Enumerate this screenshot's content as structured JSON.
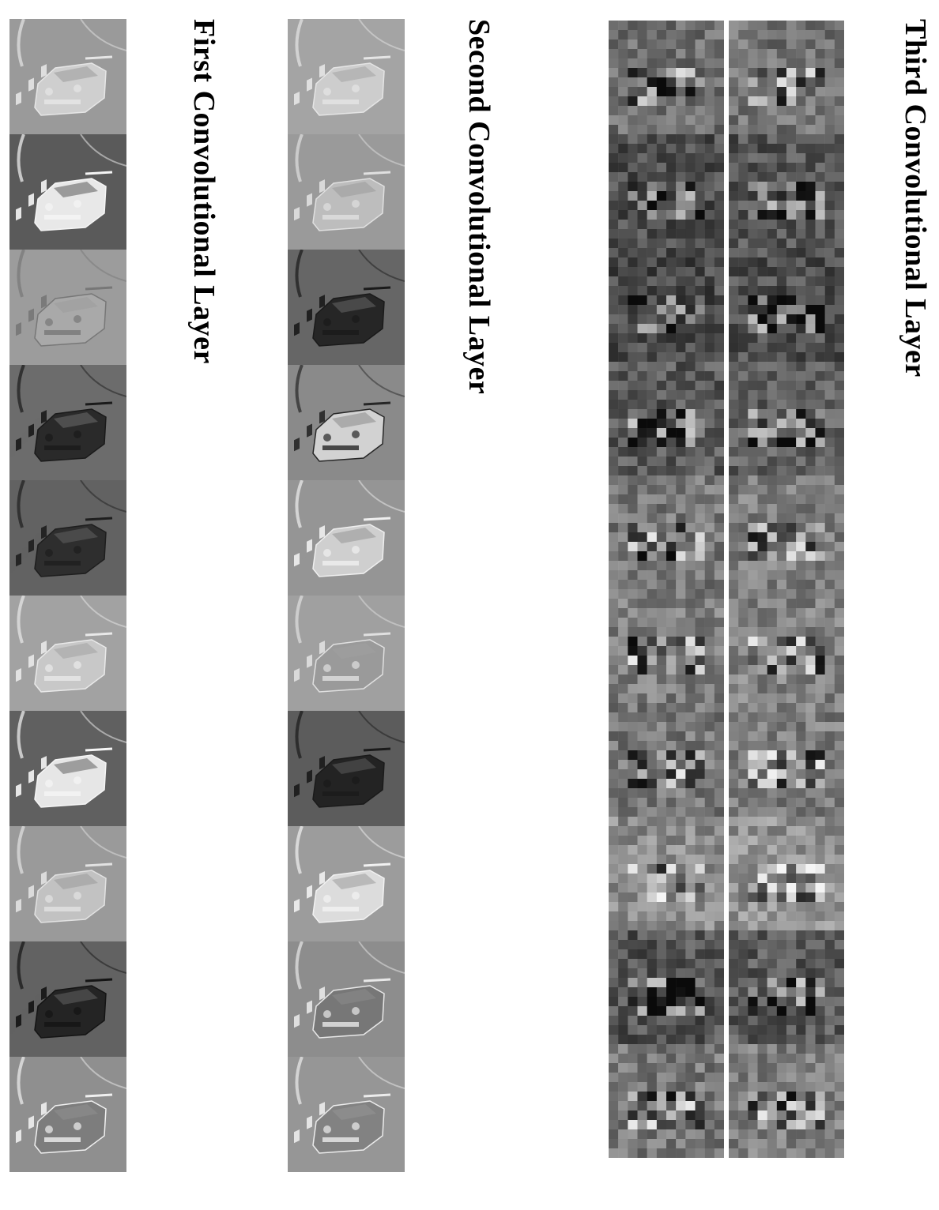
{
  "labels": {
    "first": "First Convolutional Layer",
    "second": "Second Convolutional Layer",
    "third": "Third Convolutional Layer"
  },
  "layers": {
    "first": {
      "name": "first-layer",
      "tiles": [
        {
          "bg": "#9a9a9a",
          "car": "#cfcfcf",
          "edge": "#e6e6e6"
        },
        {
          "bg": "#5a5a5a",
          "car": "#e8e8e8",
          "edge": "#f5f5f5"
        },
        {
          "bg": "#9c9c9c",
          "car": "#a9a9a9",
          "edge": "#777777"
        },
        {
          "bg": "#6c6c6c",
          "car": "#2a2a2a",
          "edge": "#1a1a1a"
        },
        {
          "bg": "#626262",
          "car": "#2e2e2e",
          "edge": "#1e1e1e"
        },
        {
          "bg": "#a2a2a2",
          "car": "#c8c8c8",
          "edge": "#e9e9e9"
        },
        {
          "bg": "#606060",
          "car": "#e6e6e6",
          "edge": "#f5f5f5"
        },
        {
          "bg": "#9a9a9a",
          "car": "#c2c2c2",
          "edge": "#e2e2e2"
        },
        {
          "bg": "#626262",
          "car": "#242424",
          "edge": "#141414"
        },
        {
          "bg": "#8f8f8f",
          "car": "#7d7d7d",
          "edge": "#f0f0f0"
        }
      ]
    },
    "second": {
      "name": "second-layer",
      "tiles": [
        {
          "bg": "#a4a4a4",
          "car": "#cdcdcd",
          "edge": "#e5e5e5"
        },
        {
          "bg": "#9a9a9a",
          "car": "#bdbdbd",
          "edge": "#e0e0e0"
        },
        {
          "bg": "#666666",
          "car": "#262626",
          "edge": "#1a1a1a"
        },
        {
          "bg": "#8a8a8a",
          "car": "#d2d2d2",
          "edge": "#262626"
        },
        {
          "bg": "#959595",
          "car": "#cfcfcf",
          "edge": "#efefef"
        },
        {
          "bg": "#a0a0a0",
          "car": "#9a9a9a",
          "edge": "#e0e0e0"
        },
        {
          "bg": "#5c5c5c",
          "car": "#232323",
          "edge": "#1a1a1a"
        },
        {
          "bg": "#9c9c9c",
          "car": "#dcdcdc",
          "edge": "#f2f2f2"
        },
        {
          "bg": "#8d8d8d",
          "car": "#777777",
          "edge": "#e8e8e8"
        },
        {
          "bg": "#969696",
          "car": "#828282",
          "edge": "#ececec"
        }
      ]
    },
    "third": {
      "name": "third-layer",
      "columns": 2,
      "rows": 10
    }
  }
}
